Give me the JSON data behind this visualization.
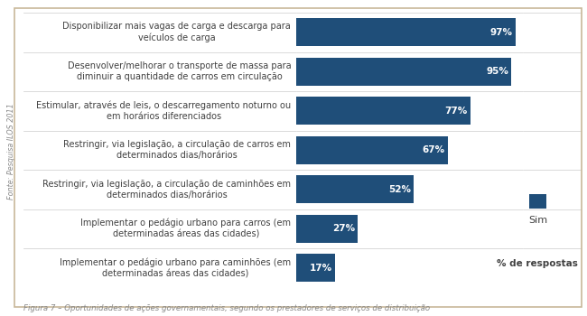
{
  "categories": [
    "Disponibilizar mais vagas de carga e descarga para\nveículos de carga",
    "Desenvolver/melhorar o transporte de massa para\ndiminuir a quantidade de carros em circulação",
    "Estimular, através de leis, o descarregamento noturno ou\nem horários diferenciados",
    "Restringir, via legislação, a circulação de carros em\ndeterminados dias/horários",
    "Restringir, via legislação, a circulação de caminhões em\ndeterminados dias/horários",
    "Implementar o pedágio urbano para carros (em\ndeterminadas áreas das cidades)",
    "Implementar o pedágio urbano para caminhões (em\ndeterminadas áreas das cidades)"
  ],
  "values": [
    97,
    95,
    77,
    67,
    52,
    27,
    17
  ],
  "bar_color": "#1F4E79",
  "bar_label_color": "#ffffff",
  "background_color": "#ffffff",
  "border_color": "#c8b89a",
  "text_color": "#404040",
  "caption_color": "#888888",
  "source_text": "Fonte: Pesquisa ILOS 2011",
  "legend_label": "Sim",
  "legend_sublabel": "% de respostas",
  "figure_caption": "Figura 7 – Oportunidades de ações governamentais, segundo os prestadores de serviços de distribuição",
  "bar_height": 0.72,
  "label_fontsize": 7.0,
  "value_fontsize": 7.5,
  "caption_fontsize": 6.2,
  "source_fontsize": 5.8,
  "legend_fontsize": 8.0,
  "legend_sub_fontsize": 7.5
}
